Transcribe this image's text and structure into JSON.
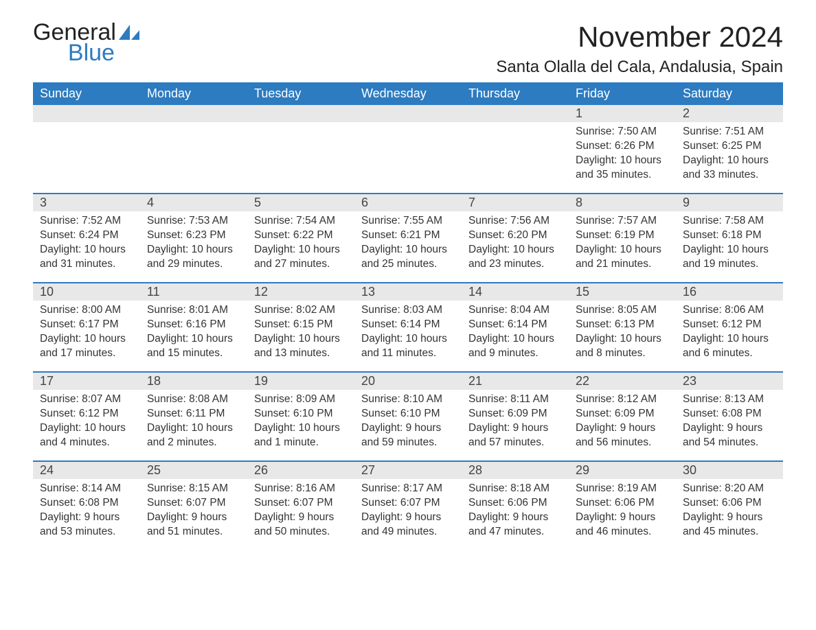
{
  "brand": {
    "word1": "General",
    "word2": "Blue"
  },
  "colors": {
    "brand_blue": "#2d7bc0",
    "header_bg": "#2d7bc0",
    "header_text": "#ffffff",
    "daynum_bg": "#e8e8e8",
    "body_text": "#333333",
    "page_bg": "#ffffff",
    "week_border": "#2d7bc0"
  },
  "title": "November 2024",
  "location": "Santa Olalla del Cala, Andalusia, Spain",
  "labels": {
    "sunrise_prefix": "Sunrise: ",
    "sunset_prefix": "Sunset: ",
    "daylight_prefix": "Daylight: "
  },
  "dow": [
    "Sunday",
    "Monday",
    "Tuesday",
    "Wednesday",
    "Thursday",
    "Friday",
    "Saturday"
  ],
  "weeks": [
    [
      null,
      null,
      null,
      null,
      null,
      {
        "n": "1",
        "sunrise": "7:50 AM",
        "sunset": "6:26 PM",
        "daylight": "10 hours and 35 minutes."
      },
      {
        "n": "2",
        "sunrise": "7:51 AM",
        "sunset": "6:25 PM",
        "daylight": "10 hours and 33 minutes."
      }
    ],
    [
      {
        "n": "3",
        "sunrise": "7:52 AM",
        "sunset": "6:24 PM",
        "daylight": "10 hours and 31 minutes."
      },
      {
        "n": "4",
        "sunrise": "7:53 AM",
        "sunset": "6:23 PM",
        "daylight": "10 hours and 29 minutes."
      },
      {
        "n": "5",
        "sunrise": "7:54 AM",
        "sunset": "6:22 PM",
        "daylight": "10 hours and 27 minutes."
      },
      {
        "n": "6",
        "sunrise": "7:55 AM",
        "sunset": "6:21 PM",
        "daylight": "10 hours and 25 minutes."
      },
      {
        "n": "7",
        "sunrise": "7:56 AM",
        "sunset": "6:20 PM",
        "daylight": "10 hours and 23 minutes."
      },
      {
        "n": "8",
        "sunrise": "7:57 AM",
        "sunset": "6:19 PM",
        "daylight": "10 hours and 21 minutes."
      },
      {
        "n": "9",
        "sunrise": "7:58 AM",
        "sunset": "6:18 PM",
        "daylight": "10 hours and 19 minutes."
      }
    ],
    [
      {
        "n": "10",
        "sunrise": "8:00 AM",
        "sunset": "6:17 PM",
        "daylight": "10 hours and 17 minutes."
      },
      {
        "n": "11",
        "sunrise": "8:01 AM",
        "sunset": "6:16 PM",
        "daylight": "10 hours and 15 minutes."
      },
      {
        "n": "12",
        "sunrise": "8:02 AM",
        "sunset": "6:15 PM",
        "daylight": "10 hours and 13 minutes."
      },
      {
        "n": "13",
        "sunrise": "8:03 AM",
        "sunset": "6:14 PM",
        "daylight": "10 hours and 11 minutes."
      },
      {
        "n": "14",
        "sunrise": "8:04 AM",
        "sunset": "6:14 PM",
        "daylight": "10 hours and 9 minutes."
      },
      {
        "n": "15",
        "sunrise": "8:05 AM",
        "sunset": "6:13 PM",
        "daylight": "10 hours and 8 minutes."
      },
      {
        "n": "16",
        "sunrise": "8:06 AM",
        "sunset": "6:12 PM",
        "daylight": "10 hours and 6 minutes."
      }
    ],
    [
      {
        "n": "17",
        "sunrise": "8:07 AM",
        "sunset": "6:12 PM",
        "daylight": "10 hours and 4 minutes."
      },
      {
        "n": "18",
        "sunrise": "8:08 AM",
        "sunset": "6:11 PM",
        "daylight": "10 hours and 2 minutes."
      },
      {
        "n": "19",
        "sunrise": "8:09 AM",
        "sunset": "6:10 PM",
        "daylight": "10 hours and 1 minute."
      },
      {
        "n": "20",
        "sunrise": "8:10 AM",
        "sunset": "6:10 PM",
        "daylight": "9 hours and 59 minutes."
      },
      {
        "n": "21",
        "sunrise": "8:11 AM",
        "sunset": "6:09 PM",
        "daylight": "9 hours and 57 minutes."
      },
      {
        "n": "22",
        "sunrise": "8:12 AM",
        "sunset": "6:09 PM",
        "daylight": "9 hours and 56 minutes."
      },
      {
        "n": "23",
        "sunrise": "8:13 AM",
        "sunset": "6:08 PM",
        "daylight": "9 hours and 54 minutes."
      }
    ],
    [
      {
        "n": "24",
        "sunrise": "8:14 AM",
        "sunset": "6:08 PM",
        "daylight": "9 hours and 53 minutes."
      },
      {
        "n": "25",
        "sunrise": "8:15 AM",
        "sunset": "6:07 PM",
        "daylight": "9 hours and 51 minutes."
      },
      {
        "n": "26",
        "sunrise": "8:16 AM",
        "sunset": "6:07 PM",
        "daylight": "9 hours and 50 minutes."
      },
      {
        "n": "27",
        "sunrise": "8:17 AM",
        "sunset": "6:07 PM",
        "daylight": "9 hours and 49 minutes."
      },
      {
        "n": "28",
        "sunrise": "8:18 AM",
        "sunset": "6:06 PM",
        "daylight": "9 hours and 47 minutes."
      },
      {
        "n": "29",
        "sunrise": "8:19 AM",
        "sunset": "6:06 PM",
        "daylight": "9 hours and 46 minutes."
      },
      {
        "n": "30",
        "sunrise": "8:20 AM",
        "sunset": "6:06 PM",
        "daylight": "9 hours and 45 minutes."
      }
    ]
  ]
}
